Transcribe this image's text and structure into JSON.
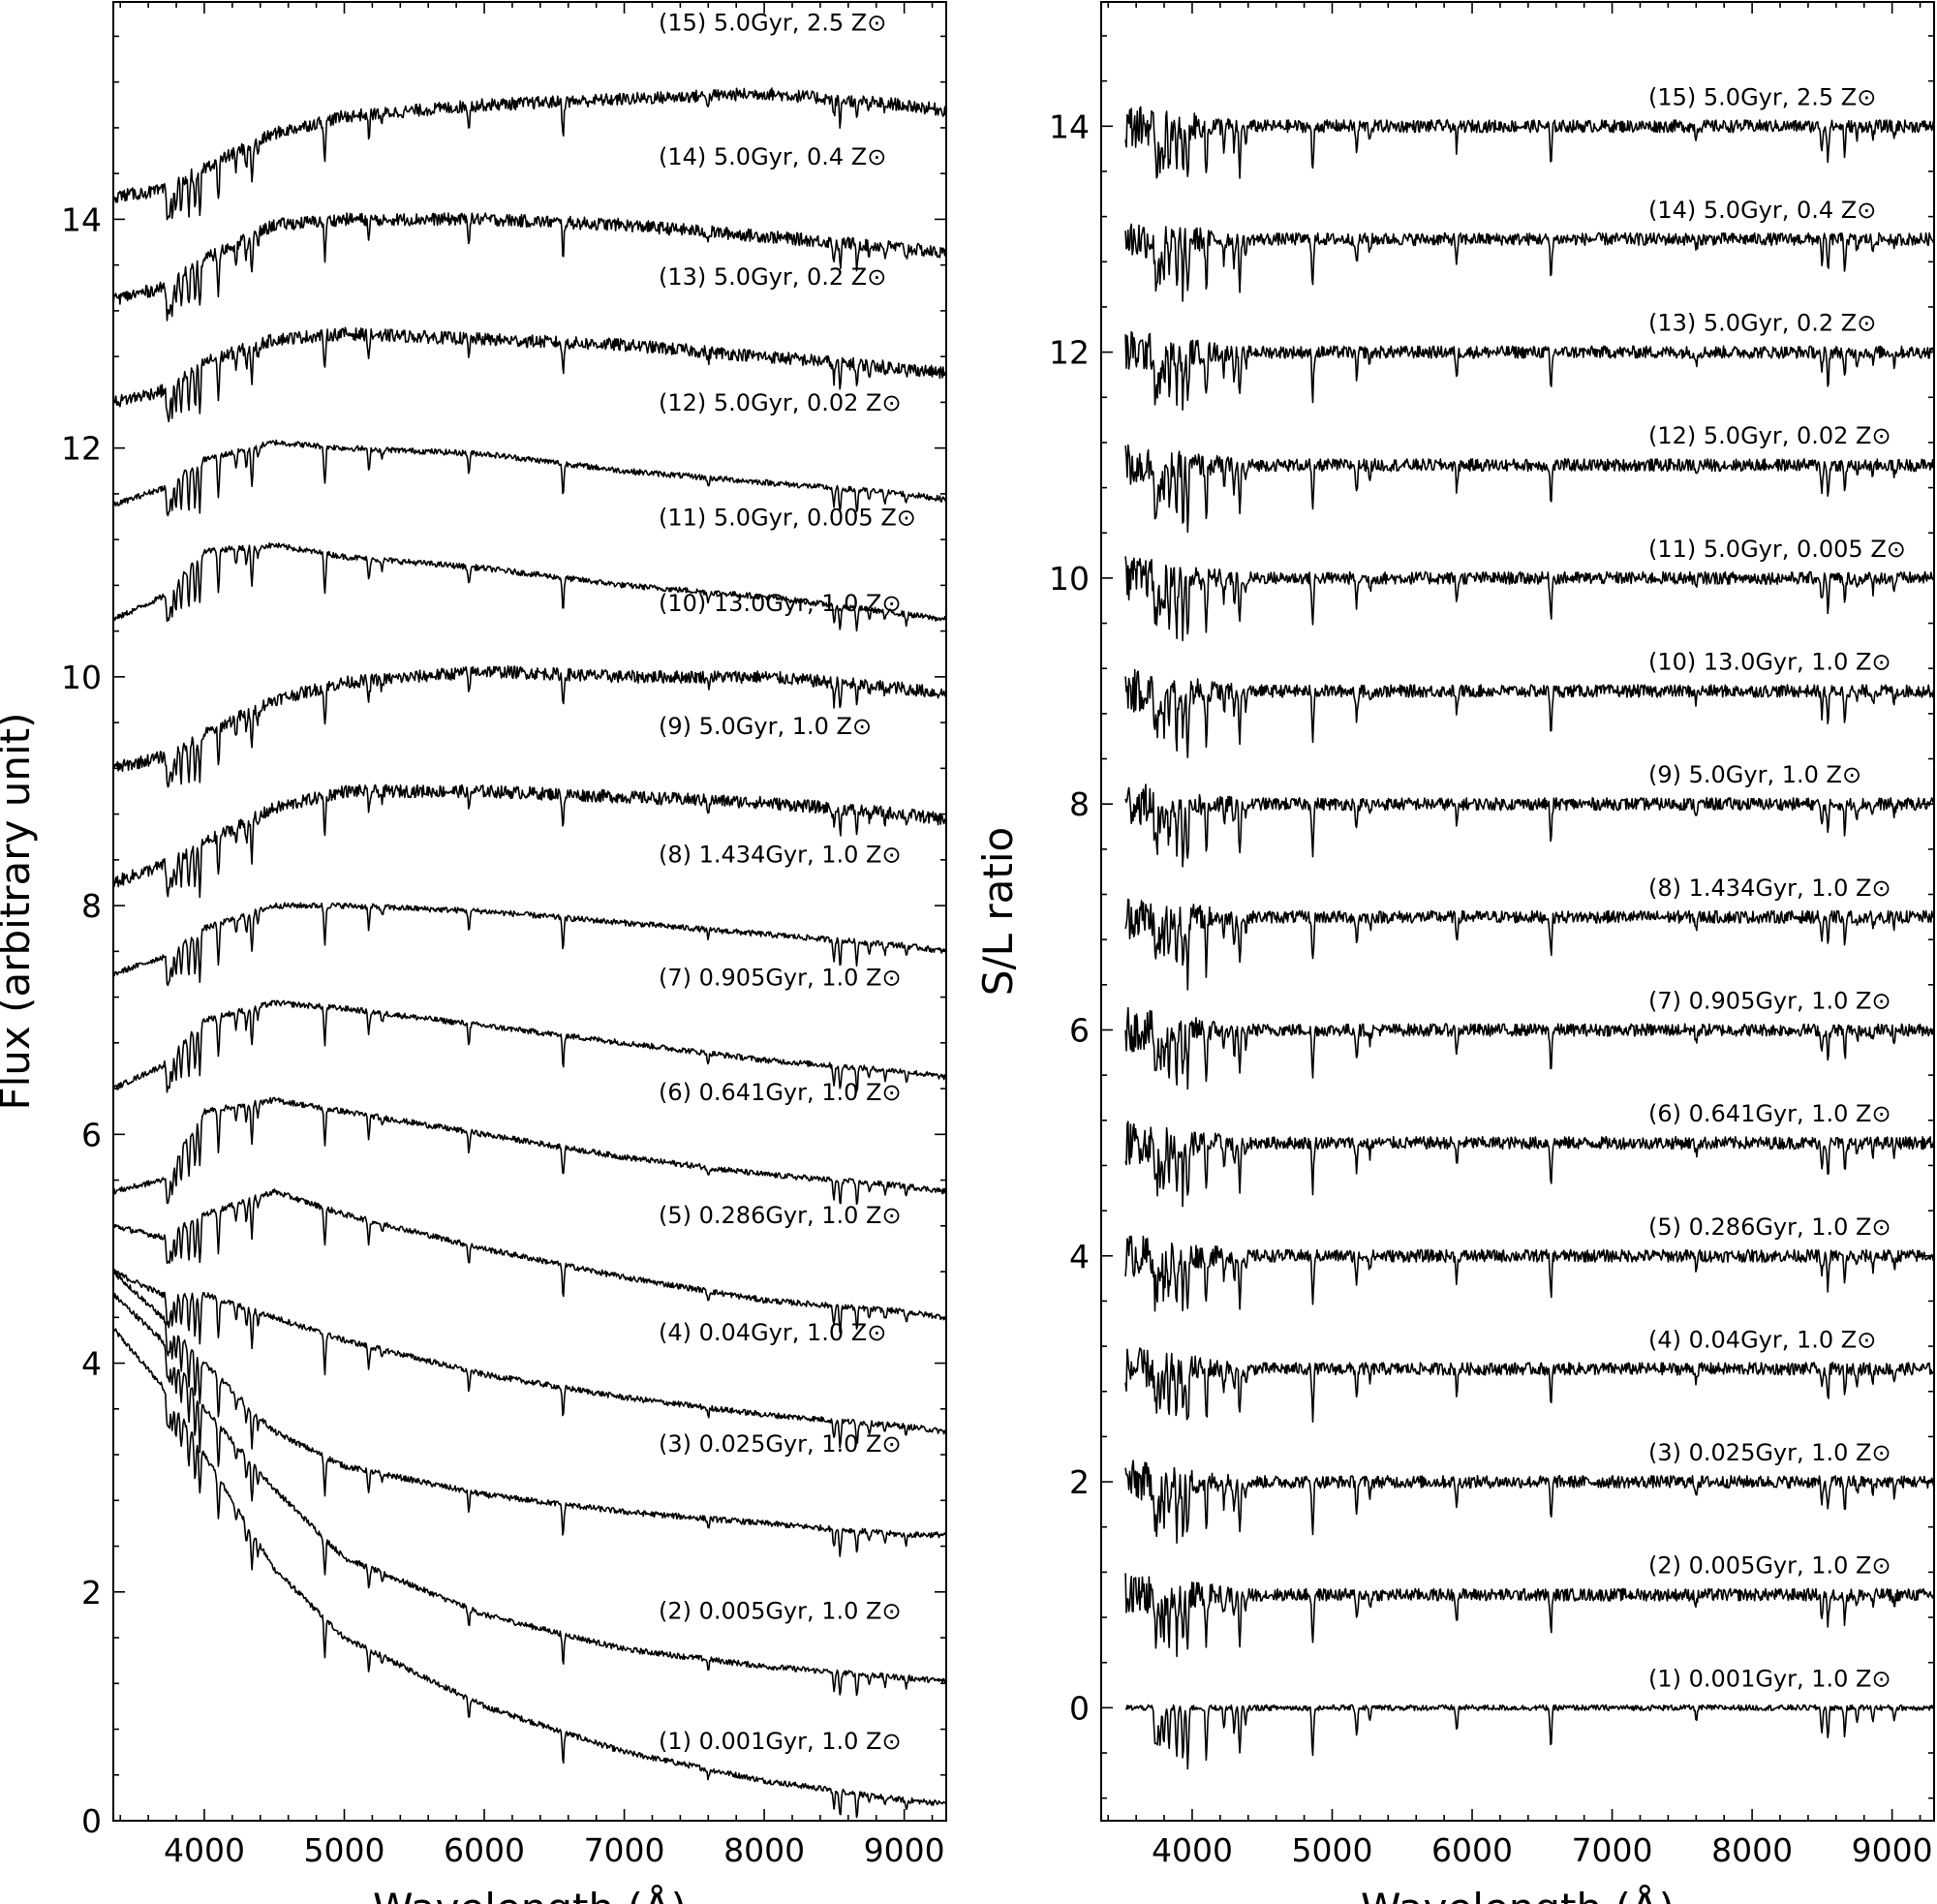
{
  "chart_data": [
    {
      "type": "line",
      "panel": "left",
      "xlabel": "Wavelength (Å)",
      "ylabel": "Flux (arbitrary unit)",
      "xlim": [
        3350,
        9300
      ],
      "ylim": [
        0,
        15.9
      ],
      "xticks": [
        4000,
        5000,
        6000,
        7000,
        8000,
        9000
      ],
      "yticks": [
        0,
        2,
        4,
        6,
        8,
        10,
        12,
        14
      ],
      "grid": false,
      "series": [
        {
          "name": "(1) 0.001Gyr, 1.0 Z⊙",
          "age_gyr": 0.001,
          "z": 1.0,
          "x": [
            3350,
            3700,
            4000,
            4500,
            5000,
            6000,
            7000,
            8000,
            9000,
            9300
          ],
          "values": [
            4.3,
            3.8,
            3.2,
            2.2,
            1.6,
            1.0,
            0.6,
            0.35,
            0.18,
            0.15
          ]
        },
        {
          "name": "(2) 0.005Gyr, 1.0 Z⊙",
          "age_gyr": 0.005,
          "z": 1.0,
          "x": [
            3350,
            3700,
            4000,
            4500,
            5000,
            6000,
            7000,
            8000,
            9000,
            9300
          ],
          "values": [
            4.6,
            4.2,
            3.6,
            2.9,
            2.3,
            1.8,
            1.5,
            1.35,
            1.25,
            1.22
          ]
        },
        {
          "name": "(3) 0.025Gyr, 1.0 Z⊙",
          "age_gyr": 0.025,
          "z": 1.0,
          "x": [
            3350,
            3700,
            4000,
            4500,
            5000,
            6000,
            7000,
            8000,
            9000,
            9300
          ],
          "values": [
            4.8,
            4.4,
            4.0,
            3.4,
            3.1,
            2.85,
            2.7,
            2.6,
            2.5,
            2.5
          ]
        },
        {
          "name": "(4) 0.04Gyr, 1.0 Z⊙",
          "age_gyr": 0.04,
          "z": 1.0,
          "x": [
            3350,
            3700,
            4000,
            4500,
            5000,
            6000,
            7000,
            8000,
            9000,
            9300
          ],
          "values": [
            4.8,
            4.6,
            4.6,
            4.4,
            4.2,
            3.9,
            3.7,
            3.55,
            3.45,
            3.4
          ]
        },
        {
          "name": "(5) 0.286Gyr, 1.0 Z⊙",
          "age_gyr": 0.286,
          "z": 1.0,
          "x": [
            3350,
            3700,
            4000,
            4500,
            5000,
            6000,
            7000,
            8000,
            9000,
            9300
          ],
          "values": [
            5.2,
            5.1,
            5.3,
            5.5,
            5.3,
            5.0,
            4.75,
            4.55,
            4.45,
            4.4
          ]
        },
        {
          "name": "(6) 0.641Gyr, 1.0 Z⊙",
          "age_gyr": 0.641,
          "z": 1.0,
          "x": [
            3350,
            3700,
            4000,
            4500,
            5000,
            6000,
            7000,
            8000,
            9000,
            9300
          ],
          "values": [
            5.5,
            5.6,
            6.2,
            6.3,
            6.2,
            6.0,
            5.8,
            5.65,
            5.55,
            5.5
          ]
        },
        {
          "name": "(7) 0.905Gyr, 1.0 Z⊙",
          "age_gyr": 0.905,
          "z": 1.0,
          "x": [
            3350,
            3700,
            4000,
            4500,
            5000,
            6000,
            7000,
            8000,
            9000,
            9300
          ],
          "values": [
            6.4,
            6.6,
            7.0,
            7.15,
            7.1,
            6.95,
            6.8,
            6.65,
            6.55,
            6.5
          ]
        },
        {
          "name": "(8) 1.434Gyr, 1.0 Z⊙",
          "age_gyr": 1.434,
          "z": 1.0,
          "x": [
            3350,
            3700,
            4000,
            4500,
            5000,
            6000,
            7000,
            8000,
            9000,
            9300
          ],
          "values": [
            7.4,
            7.55,
            7.8,
            8.0,
            8.0,
            7.95,
            7.85,
            7.75,
            7.65,
            7.6
          ]
        },
        {
          "name": "(9) 5.0Gyr, 1.0 Z⊙",
          "age_gyr": 5.0,
          "z": 1.0,
          "x": [
            3350,
            3700,
            4000,
            4500,
            5000,
            6000,
            7000,
            8000,
            9000,
            9300
          ],
          "values": [
            8.2,
            8.35,
            8.55,
            8.85,
            9.0,
            9.0,
            8.95,
            8.9,
            8.8,
            8.75
          ]
        },
        {
          "name": "(10) 13.0Gyr, 1.0 Z⊙",
          "age_gyr": 13.0,
          "z": 1.0,
          "x": [
            3350,
            3700,
            4000,
            4500,
            5000,
            6000,
            7000,
            8000,
            9000,
            9300
          ],
          "values": [
            9.2,
            9.3,
            9.5,
            9.8,
            9.95,
            10.05,
            10.0,
            10.0,
            9.9,
            9.85
          ]
        },
        {
          "name": "(11) 5.0Gyr, 0.005 Z⊙",
          "age_gyr": 5.0,
          "z": 0.005,
          "x": [
            3350,
            3700,
            4000,
            4500,
            5000,
            6000,
            7000,
            8000,
            9000,
            9300
          ],
          "values": [
            10.5,
            10.7,
            11.1,
            11.15,
            11.05,
            10.95,
            10.8,
            10.7,
            10.55,
            10.5
          ]
        },
        {
          "name": "(12) 5.0Gyr, 0.02 Z⊙",
          "age_gyr": 5.0,
          "z": 0.02,
          "x": [
            3350,
            3700,
            4000,
            4500,
            5000,
            6000,
            7000,
            8000,
            9000,
            9300
          ],
          "values": [
            11.5,
            11.65,
            11.9,
            12.05,
            12.0,
            11.95,
            11.8,
            11.7,
            11.6,
            11.55
          ]
        },
        {
          "name": "(13) 5.0Gyr, 0.2 Z⊙",
          "age_gyr": 5.0,
          "z": 0.2,
          "x": [
            3350,
            3700,
            4000,
            4500,
            5000,
            6000,
            7000,
            8000,
            9000,
            9300
          ],
          "values": [
            12.4,
            12.5,
            12.75,
            12.95,
            13.0,
            12.95,
            12.9,
            12.8,
            12.7,
            12.65
          ]
        },
        {
          "name": "(14) 5.0Gyr, 0.4 Z⊙",
          "age_gyr": 5.0,
          "z": 0.4,
          "x": [
            3350,
            3700,
            4000,
            4500,
            5000,
            6000,
            7000,
            8000,
            9000,
            9300
          ],
          "values": [
            13.3,
            13.4,
            13.65,
            13.95,
            14.0,
            14.0,
            13.95,
            13.85,
            13.75,
            13.7
          ]
        },
        {
          "name": "(15) 5.0Gyr, 2.5 Z⊙",
          "age_gyr": 5.0,
          "z": 2.5,
          "x": [
            3350,
            3700,
            4000,
            4500,
            5000,
            6000,
            7000,
            8000,
            9000,
            9300
          ],
          "values": [
            14.2,
            14.25,
            14.45,
            14.75,
            14.9,
            15.0,
            15.05,
            15.1,
            15.0,
            14.95
          ]
        }
      ]
    },
    {
      "type": "line",
      "panel": "right",
      "xlabel": "Wavelength (Å)",
      "ylabel": "S/L ratio",
      "xlim": [
        3350,
        9300
      ],
      "ylim": [
        -1,
        15.1
      ],
      "xticks": [
        4000,
        5000,
        6000,
        7000,
        8000,
        9000
      ],
      "yticks": [
        0,
        2,
        4,
        6,
        8,
        10,
        12,
        14
      ],
      "grid": false,
      "series": [
        {
          "name": "(1) 0.001Gyr, 1.0 Z⊙",
          "offset": 0
        },
        {
          "name": "(2) 0.005Gyr, 1.0 Z⊙",
          "offset": 1
        },
        {
          "name": "(3) 0.025Gyr, 1.0 Z⊙",
          "offset": 2
        },
        {
          "name": "(4) 0.04Gyr, 1.0 Z⊙",
          "offset": 3
        },
        {
          "name": "(5) 0.286Gyr, 1.0 Z⊙",
          "offset": 4
        },
        {
          "name": "(6) 0.641Gyr, 1.0 Z⊙",
          "offset": 5
        },
        {
          "name": "(7) 0.905Gyr, 1.0 Z⊙",
          "offset": 6
        },
        {
          "name": "(8) 1.434Gyr, 1.0 Z⊙",
          "offset": 7
        },
        {
          "name": "(9) 5.0Gyr, 1.0 Z⊙",
          "offset": 8
        },
        {
          "name": "(10) 13.0Gyr, 1.0 Z⊙",
          "offset": 9
        },
        {
          "name": "(11) 5.0Gyr, 0.005 Z⊙",
          "offset": 10
        },
        {
          "name": "(12) 5.0Gyr, 0.02 Z⊙",
          "offset": 11
        },
        {
          "name": "(13) 5.0Gyr, 0.2 Z⊙",
          "offset": 12
        },
        {
          "name": "(14) 5.0Gyr, 0.4 Z⊙",
          "offset": 13
        },
        {
          "name": "(15) 5.0Gyr, 2.5 Z⊙",
          "offset": 14
        }
      ]
    }
  ]
}
